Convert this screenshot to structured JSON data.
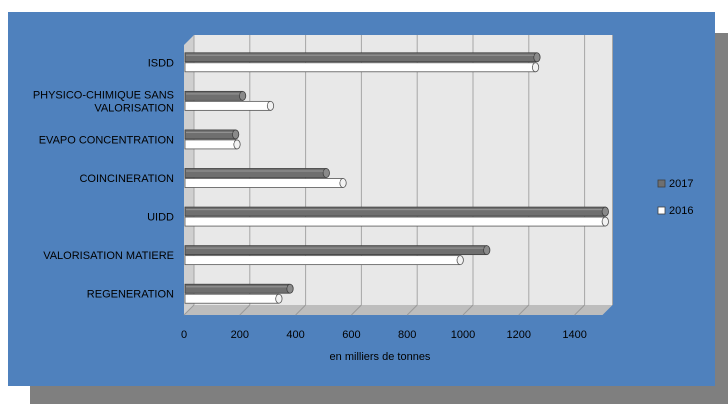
{
  "chart_data": {
    "type": "bar",
    "orientation": "horizontal",
    "categories": [
      "ISDD",
      "PHYSICO-CHIMIQUE SANS VALORISATION",
      "EVAPO CONCENTRATION",
      "COINCINERATION",
      "UIDD",
      "VALORISATION MATIERE",
      "REGENERATION"
    ],
    "category_lines": [
      [
        "ISDD"
      ],
      [
        "PHYSICO-CHIMIQUE SANS",
        "VALORISATION"
      ],
      [
        "EVAPO CONCENTRATION"
      ],
      [
        "COINCINERATION"
      ],
      [
        "UIDD"
      ],
      [
        "VALORISATION MATIERE"
      ],
      [
        "REGENERATION"
      ]
    ],
    "series": [
      {
        "name": "2017",
        "color": "#6f6f6f",
        "values": [
          1265,
          210,
          185,
          510,
          1510,
          1085,
          380
        ]
      },
      {
        "name": "2016",
        "color": "#ffffff",
        "values": [
          1260,
          310,
          190,
          570,
          1510,
          990,
          340
        ]
      }
    ],
    "xlabel": "en milliers de tonnes",
    "ylabel": "",
    "xlim": [
      0,
      1500
    ],
    "xticks": [
      0,
      200,
      400,
      600,
      800,
      1000,
      1200,
      1400
    ],
    "grid": true,
    "legend_position": "right",
    "colors": {
      "background": "#4f81bd",
      "plot_area": "#e8e8e8",
      "shadow": "#7f7f7f"
    }
  }
}
